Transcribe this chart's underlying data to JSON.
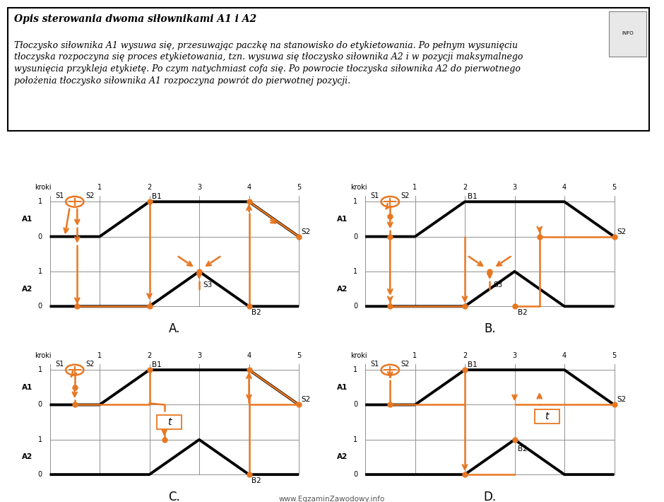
{
  "title_bold": "Opis sterowania dwoma siłownikami A1 i A2",
  "title_text": "Tłoczysko siłownika A1 wysuwa się, przesuwając paczkę na stanowisko do etykietowania. Po pełnym wysunięciu tłoczyska rozpoczyna się proces etykietowania, tzn. wysuwa się tłoczysko siłownika A2 i w pozycji maksymalnego wysunięcia przykleja etykietę. Po czym natychmiast cofa się. Po powrocie tłoczyska siłownika A2 do pierwotnego położenia tłoczysko siłownika A1 rozpoczyna powrót do pierwotnej pozycji.",
  "orange": "#E87722",
  "black": "#000000",
  "footer": "www.EgzaminZawodowy.info"
}
